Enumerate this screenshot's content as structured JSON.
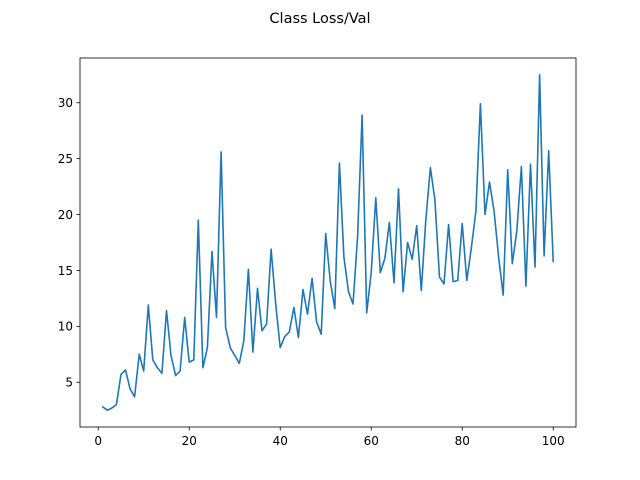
{
  "chart_data": {
    "type": "line",
    "title": "Class Loss/Val",
    "xlabel": "",
    "ylabel": "",
    "xlim": [
      -4,
      105
    ],
    "ylim": [
      1,
      34
    ],
    "xticks": [
      0,
      20,
      40,
      60,
      80,
      100
    ],
    "yticks": [
      5,
      10,
      15,
      20,
      25,
      30
    ],
    "grid": false,
    "line_color": "#1f77b4",
    "series": [
      {
        "x": [
          1,
          2,
          3,
          4,
          5,
          6,
          7,
          8,
          9,
          10,
          11,
          12,
          13,
          14,
          15,
          16,
          17,
          18,
          19,
          20,
          21,
          22,
          23,
          24,
          25,
          26,
          27,
          28,
          29,
          30,
          31,
          32,
          33,
          34,
          35,
          36,
          37,
          38,
          39,
          40,
          41,
          42,
          43,
          44,
          45,
          46,
          47,
          48,
          49,
          50,
          51,
          52,
          53,
          54,
          55,
          56,
          57,
          58,
          59,
          60,
          61,
          62,
          63,
          64,
          65,
          66,
          67,
          68,
          69,
          70,
          71,
          72,
          73,
          74,
          75,
          76,
          77,
          78,
          79,
          80,
          81,
          82,
          83,
          84,
          85,
          86,
          87,
          88,
          89,
          90,
          91,
          92,
          93,
          94,
          95,
          96,
          97,
          98,
          99,
          100
        ],
        "values": [
          2.8,
          2.5,
          2.7,
          3.0,
          5.7,
          6.1,
          4.4,
          3.7,
          7.5,
          6.0,
          11.9,
          7.0,
          6.3,
          5.8,
          11.4,
          7.4,
          5.6,
          6.0,
          10.8,
          6.8,
          7.0,
          19.5,
          6.3,
          8.1,
          16.7,
          10.8,
          25.6,
          9.9,
          8.1,
          7.4,
          6.7,
          8.7,
          15.1,
          7.7,
          13.4,
          9.6,
          10.2,
          16.9,
          12.0,
          8.1,
          9.1,
          9.5,
          11.7,
          9.0,
          13.3,
          11.1,
          14.3,
          10.4,
          9.3,
          18.3,
          14.0,
          11.6,
          24.6,
          16.2,
          13.1,
          12.0,
          18.0,
          28.9,
          11.2,
          14.8,
          21.5,
          14.8,
          16.1,
          19.3,
          13.9,
          22.3,
          13.1,
          17.5,
          16.0,
          19.0,
          13.2,
          19.5,
          24.2,
          21.3,
          14.4,
          13.8,
          19.1,
          14.0,
          14.1,
          19.2,
          14.1,
          17.0,
          20.3,
          29.9,
          20.0,
          22.9,
          20.3,
          16.2,
          12.8,
          24.0,
          15.6,
          18.5,
          24.3,
          13.6,
          24.5,
          15.3,
          32.5,
          16.3,
          25.7,
          15.8
        ]
      }
    ]
  }
}
